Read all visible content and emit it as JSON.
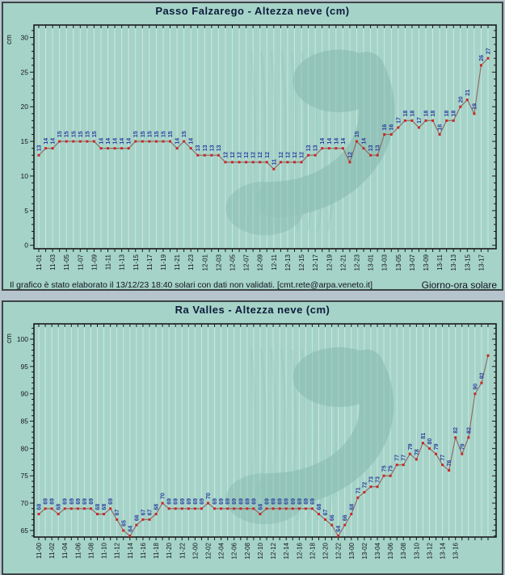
{
  "colors": {
    "page_bg": "#b6c5cd",
    "panel_bg": "#a5d3c8",
    "panel_border": "#3d4447",
    "grid": "rgba(255,255,255,0.45)",
    "axis": "#1a1a1a",
    "series_line": "#8d6660",
    "series_dot": "#c92727",
    "value_label": "#2b3f9e",
    "watermark": "#7eb2a8",
    "title_text": "#0d1b3a",
    "footer_text": "#13131f"
  },
  "chart_data": [
    {
      "type": "line",
      "title": "Passo Falzarego - Altezza neve (cm)",
      "y_axis_label": "cm",
      "ylabel": "cm",
      "xlabel": "Giorno-ora solare",
      "y_ticks": [
        0,
        5,
        10,
        15,
        20,
        25,
        30
      ],
      "ylim": [
        0,
        30
      ],
      "ylim_render": [
        -0.5,
        31.8
      ],
      "grid": "vertical-hourly",
      "x_tick_labels": [
        "11-01",
        "11-03",
        "11-05",
        "11-07",
        "11-09",
        "11-11",
        "11-13",
        "11-15",
        "11-17",
        "11-19",
        "11-21",
        "11-23",
        "12-01",
        "12-03",
        "12-05",
        "12-07",
        "12-09",
        "12-11",
        "12-13",
        "12-15",
        "12-17",
        "12-19",
        "12-21",
        "12-23",
        "13-01",
        "13-03",
        "13-05",
        "13-07",
        "13-09",
        "13-11",
        "13-13",
        "13-15",
        "13-17"
      ],
      "x_start": "11-01",
      "x_end": "13-18",
      "x_step_hours": 1,
      "values": [
        13,
        14,
        14,
        15,
        15,
        15,
        15,
        15,
        15,
        14,
        14,
        14,
        14,
        14,
        15,
        15,
        15,
        15,
        15,
        15,
        14,
        15,
        14,
        13,
        13,
        13,
        13,
        12,
        12,
        12,
        12,
        12,
        12,
        12,
        11,
        12,
        12,
        12,
        12,
        13,
        13,
        14,
        14,
        14,
        14,
        12,
        15,
        14,
        13,
        13,
        16,
        16,
        17,
        18,
        18,
        17,
        18,
        18,
        16,
        18,
        18,
        20,
        21,
        19,
        26,
        27
      ],
      "unlabeled_last_n": 0,
      "footer_left": "Il grafico è stato elaborato il 13/12/23 18:40 solari con dati non validati. [cmt.rete@arpa.veneto.it]",
      "footer_right": "Giorno-ora solare"
    },
    {
      "type": "line",
      "title": "Ra Valles - Altezza neve (cm)",
      "y_axis_label": "cm",
      "ylabel": "cm",
      "xlabel": "Giorno-ora solare",
      "y_ticks": [
        65,
        70,
        75,
        80,
        85,
        90,
        95,
        100
      ],
      "ylim": [
        65,
        100
      ],
      "ylim_render": [
        63.8,
        102.8
      ],
      "grid": "vertical-hourly",
      "x_tick_labels": [
        "11-00",
        "11-02",
        "11-04",
        "11-06",
        "11-08",
        "11-10",
        "11-12",
        "11-14",
        "11-16",
        "11-18",
        "11-20",
        "11-22",
        "12-00",
        "12-02",
        "12-04",
        "12-06",
        "12-08",
        "12-10",
        "12-12",
        "12-14",
        "12-16",
        "12-18",
        "12-20",
        "12-22",
        "13-00",
        "13-02",
        "13-04",
        "13-06",
        "13-08",
        "13-10",
        "13-12",
        "13-14",
        "13-16"
      ],
      "x_start": "11-00",
      "x_end": "13-18",
      "x_step_hours": 1,
      "values": [
        68,
        69,
        69,
        68,
        69,
        69,
        69,
        69,
        69,
        68,
        68,
        69,
        67,
        65,
        64,
        66,
        67,
        67,
        68,
        70,
        69,
        69,
        69,
        69,
        69,
        69,
        70,
        69,
        69,
        69,
        69,
        69,
        69,
        69,
        68,
        69,
        69,
        69,
        69,
        69,
        69,
        69,
        69,
        68,
        67,
        66,
        64,
        66,
        68,
        71,
        72,
        73,
        73,
        75,
        75,
        77,
        77,
        79,
        78,
        81,
        80,
        79,
        77,
        76,
        82,
        79,
        82,
        90,
        92,
        97
      ],
      "unlabeled_last_n": 1,
      "footer_left": "",
      "footer_right": ""
    }
  ]
}
